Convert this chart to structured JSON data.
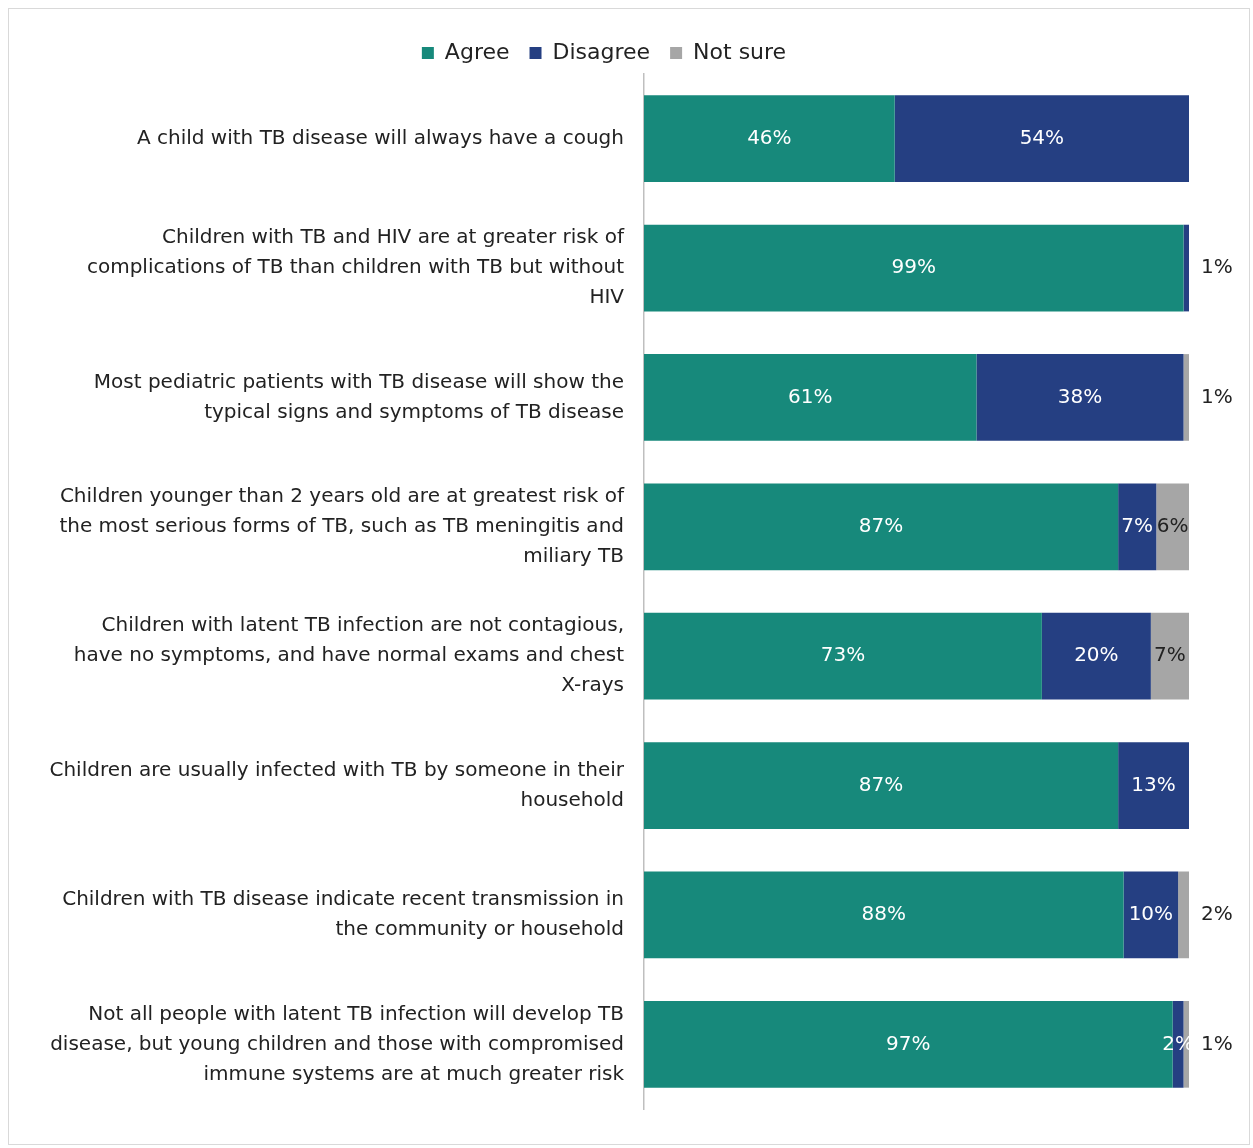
{
  "chart_data": {
    "type": "bar",
    "orientation": "horizontal",
    "stacked": true,
    "legend": "top",
    "grid": false,
    "tick_labels": "y",
    "xlim": [
      0,
      100
    ],
    "categories": [
      "A child with TB disease will always have a cough",
      "Children with TB and HIV are at greater risk of complications of TB than children with TB but without HIV",
      "Most pediatric patients with TB disease will show the typical signs and symptoms of TB disease",
      "Children younger than 2 years old are at greatest risk of the most serious forms of TB, such as TB meningitis and miliary TB",
      "Children with latent TB infection are not contagious, have no symptoms, and have normal exams and chest X-rays",
      "Children are usually infected with TB by someone in their household",
      "Children with TB disease indicate recent transmission in the community or household",
      "Not all people with latent TB infection will develop TB disease, but young children and those with compromised immune systems are at much greater risk"
    ],
    "series": [
      {
        "name": "Agree",
        "color": "#17897b",
        "values": [
          46,
          99,
          61,
          87,
          73,
          87,
          88,
          97
        ],
        "value_labels": [
          "46%",
          "99%",
          "61%",
          "87%",
          "73%",
          "87%",
          "88%",
          "97%"
        ]
      },
      {
        "name": "Disagree",
        "color": "#253f82",
        "values": [
          54,
          1,
          38,
          7,
          20,
          13,
          10,
          2
        ],
        "value_labels": [
          "54%",
          "1%",
          "38%",
          "7%",
          "20%",
          "13%",
          "10%",
          "2%"
        ]
      },
      {
        "name": "Not sure",
        "color": "#a6a6a6",
        "values": [
          null,
          null,
          1,
          6,
          7,
          null,
          2,
          1
        ],
        "value_labels": [
          null,
          null,
          "1%",
          "6%",
          "7%",
          null,
          "2%",
          "1%"
        ]
      }
    ]
  }
}
